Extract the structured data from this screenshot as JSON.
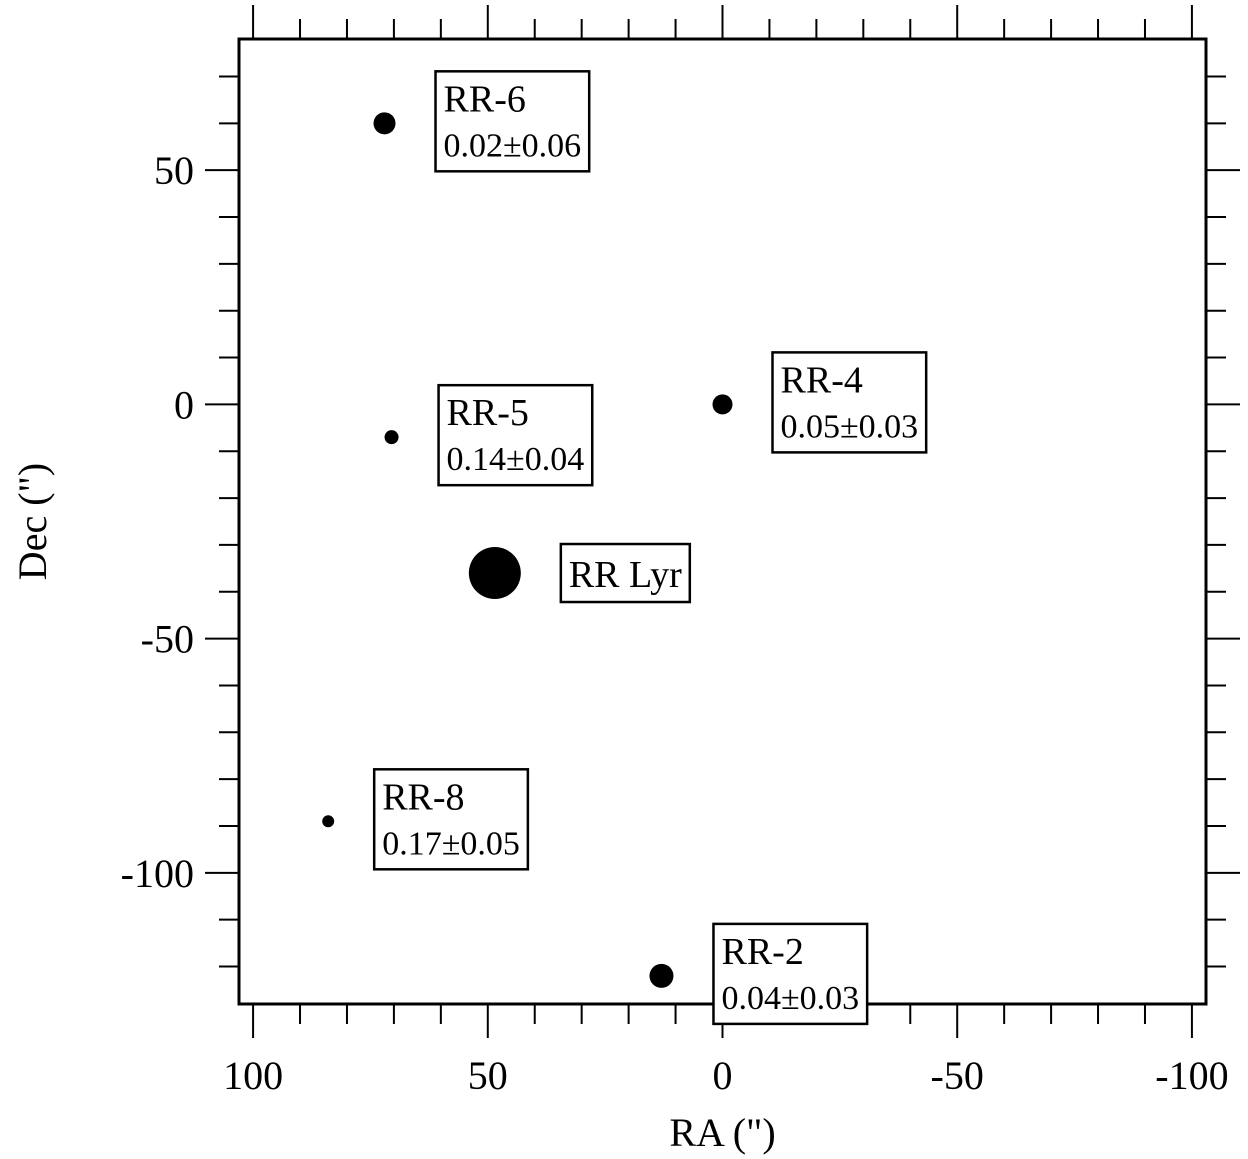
{
  "chart_data": {
    "type": "scatter",
    "xlabel": "RA (\")",
    "ylabel": "Dec (\")",
    "xlim": [
      103,
      -103
    ],
    "ylim": [
      -128,
      78
    ],
    "x_reversed": true,
    "grid": false,
    "x_ticks": [
      {
        "value": 100,
        "label": "100"
      },
      {
        "value": 50,
        "label": "50"
      },
      {
        "value": 0,
        "label": "0"
      },
      {
        "value": -50,
        "label": "-50"
      },
      {
        "value": -100,
        "label": "-100"
      }
    ],
    "y_ticks": [
      {
        "value": 50,
        "label": "50"
      },
      {
        "value": 0,
        "label": "0"
      },
      {
        "value": -50,
        "label": "-50"
      },
      {
        "value": -100,
        "label": "-100"
      }
    ],
    "points": [
      {
        "name": "RR-6",
        "value": "0.02±0.06",
        "x": 72,
        "y": 60,
        "marker_size": 11
      },
      {
        "name": "RR-5",
        "value": "0.14±0.04",
        "x": 70.5,
        "y": -7,
        "marker_size": 7
      },
      {
        "name": "RR-4",
        "value": "0.05±0.03",
        "x": 0,
        "y": 0,
        "marker_size": 10
      },
      {
        "name": "RR Lyr",
        "value": "",
        "x": 48.5,
        "y": -36,
        "marker_size": 26
      },
      {
        "name": "RR-8",
        "value": "0.17±0.05",
        "x": 84,
        "y": -89,
        "marker_size": 6
      },
      {
        "name": "RR-2",
        "value": "0.04±0.03",
        "x": 13,
        "y": -122,
        "marker_size": 12
      }
    ]
  }
}
